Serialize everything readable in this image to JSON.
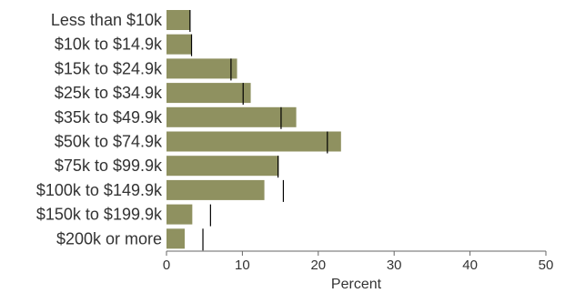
{
  "chart_data": {
    "type": "bar",
    "orientation": "horizontal",
    "categories": [
      "Less than $10k",
      "$10k to $14.9k",
      "$15k to $24.9k",
      "$25k to $34.9k",
      "$35k to $49.9k",
      "$50k to $74.9k",
      "$75k to $99.9k",
      "$100k to $149.9k",
      "$150k to $199.9k",
      "$200k or more"
    ],
    "values": [
      3.1,
      3.3,
      9.3,
      11.1,
      17.1,
      23.0,
      14.8,
      12.9,
      3.4,
      2.4
    ],
    "reference_markers": [
      3.1,
      3.3,
      8.5,
      10.1,
      15.1,
      21.2,
      14.7,
      15.4,
      5.8,
      4.8
    ],
    "xlabel": "Percent",
    "ylabel": "",
    "xlim": [
      0,
      50
    ],
    "xticks": [
      0,
      10,
      20,
      30,
      40,
      50
    ],
    "grid": false,
    "colors": {
      "bar": "#8f9160",
      "marker": "#000000",
      "axis": "#666666"
    }
  }
}
